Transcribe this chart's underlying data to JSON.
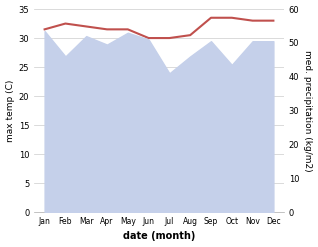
{
  "months": [
    "Jan",
    "Feb",
    "Mar",
    "Apr",
    "May",
    "Jun",
    "Jul",
    "Aug",
    "Sep",
    "Oct",
    "Nov",
    "Dec"
  ],
  "temp": [
    31.5,
    32.5,
    32.0,
    31.5,
    31.5,
    30.0,
    30.0,
    30.5,
    33.5,
    33.5,
    33.0,
    33.0
  ],
  "precip": [
    53.5,
    46.0,
    52.0,
    49.5,
    53.0,
    51.0,
    41.0,
    46.0,
    50.5,
    43.5,
    50.5,
    50.5
  ],
  "temp_color": "#c0504d",
  "precip_fill_color": "#c5d0ea",
  "temp_ylim": [
    0,
    35
  ],
  "precip_ylim": [
    0,
    60
  ],
  "temp_yticks": [
    0,
    5,
    10,
    15,
    20,
    25,
    30,
    35
  ],
  "precip_yticks": [
    0,
    10,
    20,
    30,
    40,
    50,
    60
  ],
  "xlabel": "date (month)",
  "ylabel_left": "max temp (C)",
  "ylabel_right": "med. precipitation (kg/m2)",
  "background_color": "#ffffff",
  "fig_width": 3.18,
  "fig_height": 2.47,
  "dpi": 100
}
